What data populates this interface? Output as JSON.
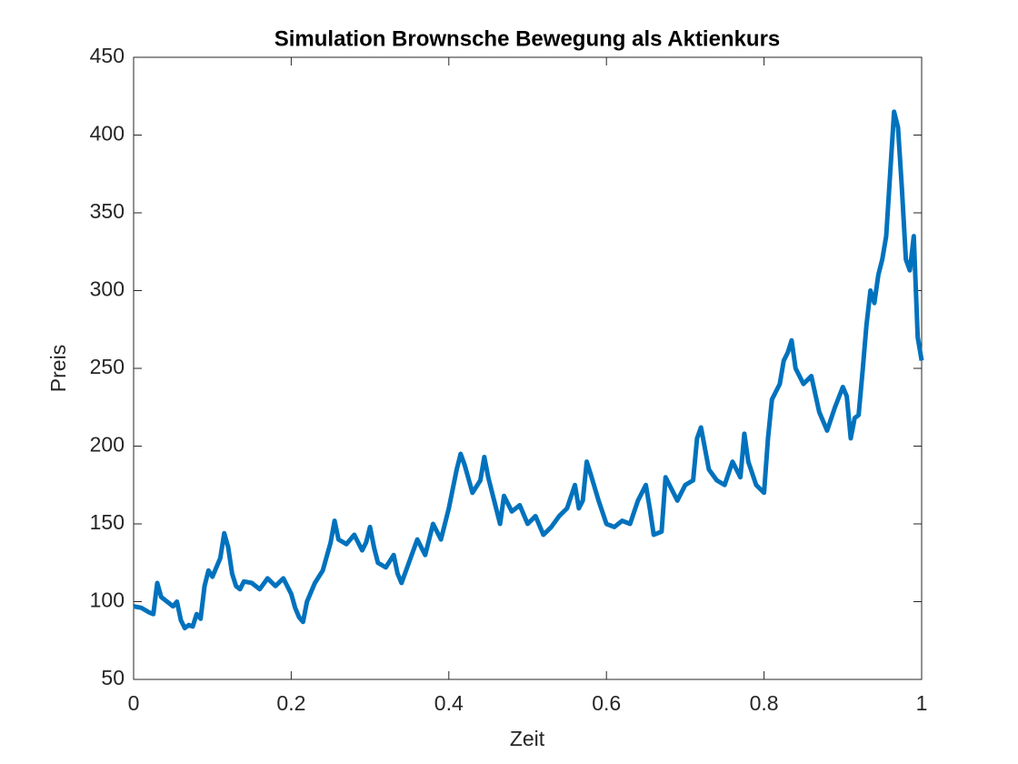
{
  "chart_data": {
    "type": "line",
    "title": "Simulation Brownsche Bewegung als Aktienkurs",
    "xlabel": "Zeit",
    "ylabel": "Preis",
    "xlim": [
      0,
      1
    ],
    "ylim": [
      50,
      450
    ],
    "xticks": [
      0,
      0.2,
      0.4,
      0.6,
      0.8,
      1
    ],
    "yticks": [
      50,
      100,
      150,
      200,
      250,
      300,
      350,
      400,
      450
    ],
    "grid": false,
    "series": [
      {
        "color": "#0072BD",
        "x": [
          0,
          0.01,
          0.02,
          0.025,
          0.03,
          0.035,
          0.04,
          0.05,
          0.055,
          0.06,
          0.065,
          0.07,
          0.075,
          0.08,
          0.085,
          0.09,
          0.095,
          0.1,
          0.105,
          0.11,
          0.115,
          0.12,
          0.125,
          0.13,
          0.135,
          0.14,
          0.15,
          0.16,
          0.17,
          0.18,
          0.19,
          0.2,
          0.205,
          0.21,
          0.215,
          0.22,
          0.23,
          0.24,
          0.25,
          0.255,
          0.26,
          0.27,
          0.28,
          0.29,
          0.295,
          0.3,
          0.305,
          0.31,
          0.32,
          0.33,
          0.335,
          0.34,
          0.35,
          0.36,
          0.37,
          0.38,
          0.39,
          0.4,
          0.41,
          0.415,
          0.42,
          0.43,
          0.44,
          0.445,
          0.45,
          0.46,
          0.465,
          0.47,
          0.48,
          0.49,
          0.5,
          0.51,
          0.52,
          0.53,
          0.54,
          0.55,
          0.56,
          0.565,
          0.57,
          0.575,
          0.58,
          0.59,
          0.6,
          0.61,
          0.62,
          0.63,
          0.64,
          0.65,
          0.655,
          0.66,
          0.67,
          0.675,
          0.68,
          0.69,
          0.7,
          0.71,
          0.715,
          0.72,
          0.73,
          0.74,
          0.75,
          0.76,
          0.77,
          0.775,
          0.78,
          0.79,
          0.8,
          0.805,
          0.81,
          0.82,
          0.825,
          0.83,
          0.835,
          0.84,
          0.85,
          0.86,
          0.87,
          0.88,
          0.89,
          0.9,
          0.905,
          0.91,
          0.915,
          0.92,
          0.925,
          0.93,
          0.935,
          0.94,
          0.945,
          0.95,
          0.955,
          0.96,
          0.965,
          0.97,
          0.975,
          0.98,
          0.985,
          0.99,
          0.995,
          1
        ],
        "values": [
          97,
          96,
          93,
          92,
          112,
          103,
          101,
          97,
          100,
          88,
          83,
          85,
          84,
          92,
          89,
          110,
          120,
          116,
          122,
          128,
          144,
          135,
          118,
          110,
          108,
          113,
          112,
          108,
          115,
          110,
          115,
          105,
          96,
          90,
          87,
          100,
          112,
          120,
          138,
          152,
          140,
          137,
          143,
          133,
          138,
          148,
          135,
          125,
          122,
          130,
          118,
          112,
          126,
          140,
          130,
          150,
          140,
          160,
          185,
          195,
          188,
          170,
          178,
          193,
          180,
          160,
          150,
          168,
          158,
          162,
          150,
          155,
          143,
          148,
          155,
          160,
          175,
          160,
          165,
          190,
          182,
          165,
          150,
          148,
          152,
          150,
          165,
          175,
          160,
          143,
          145,
          180,
          175,
          165,
          175,
          178,
          205,
          212,
          185,
          178,
          175,
          190,
          180,
          208,
          190,
          175,
          170,
          205,
          230,
          240,
          255,
          260,
          268,
          250,
          240,
          245,
          222,
          210,
          225,
          238,
          232,
          205,
          218,
          220,
          248,
          278,
          300,
          292,
          310,
          320,
          335,
          375,
          415,
          405,
          365,
          320,
          313,
          335,
          270,
          255
        ]
      }
    ]
  }
}
